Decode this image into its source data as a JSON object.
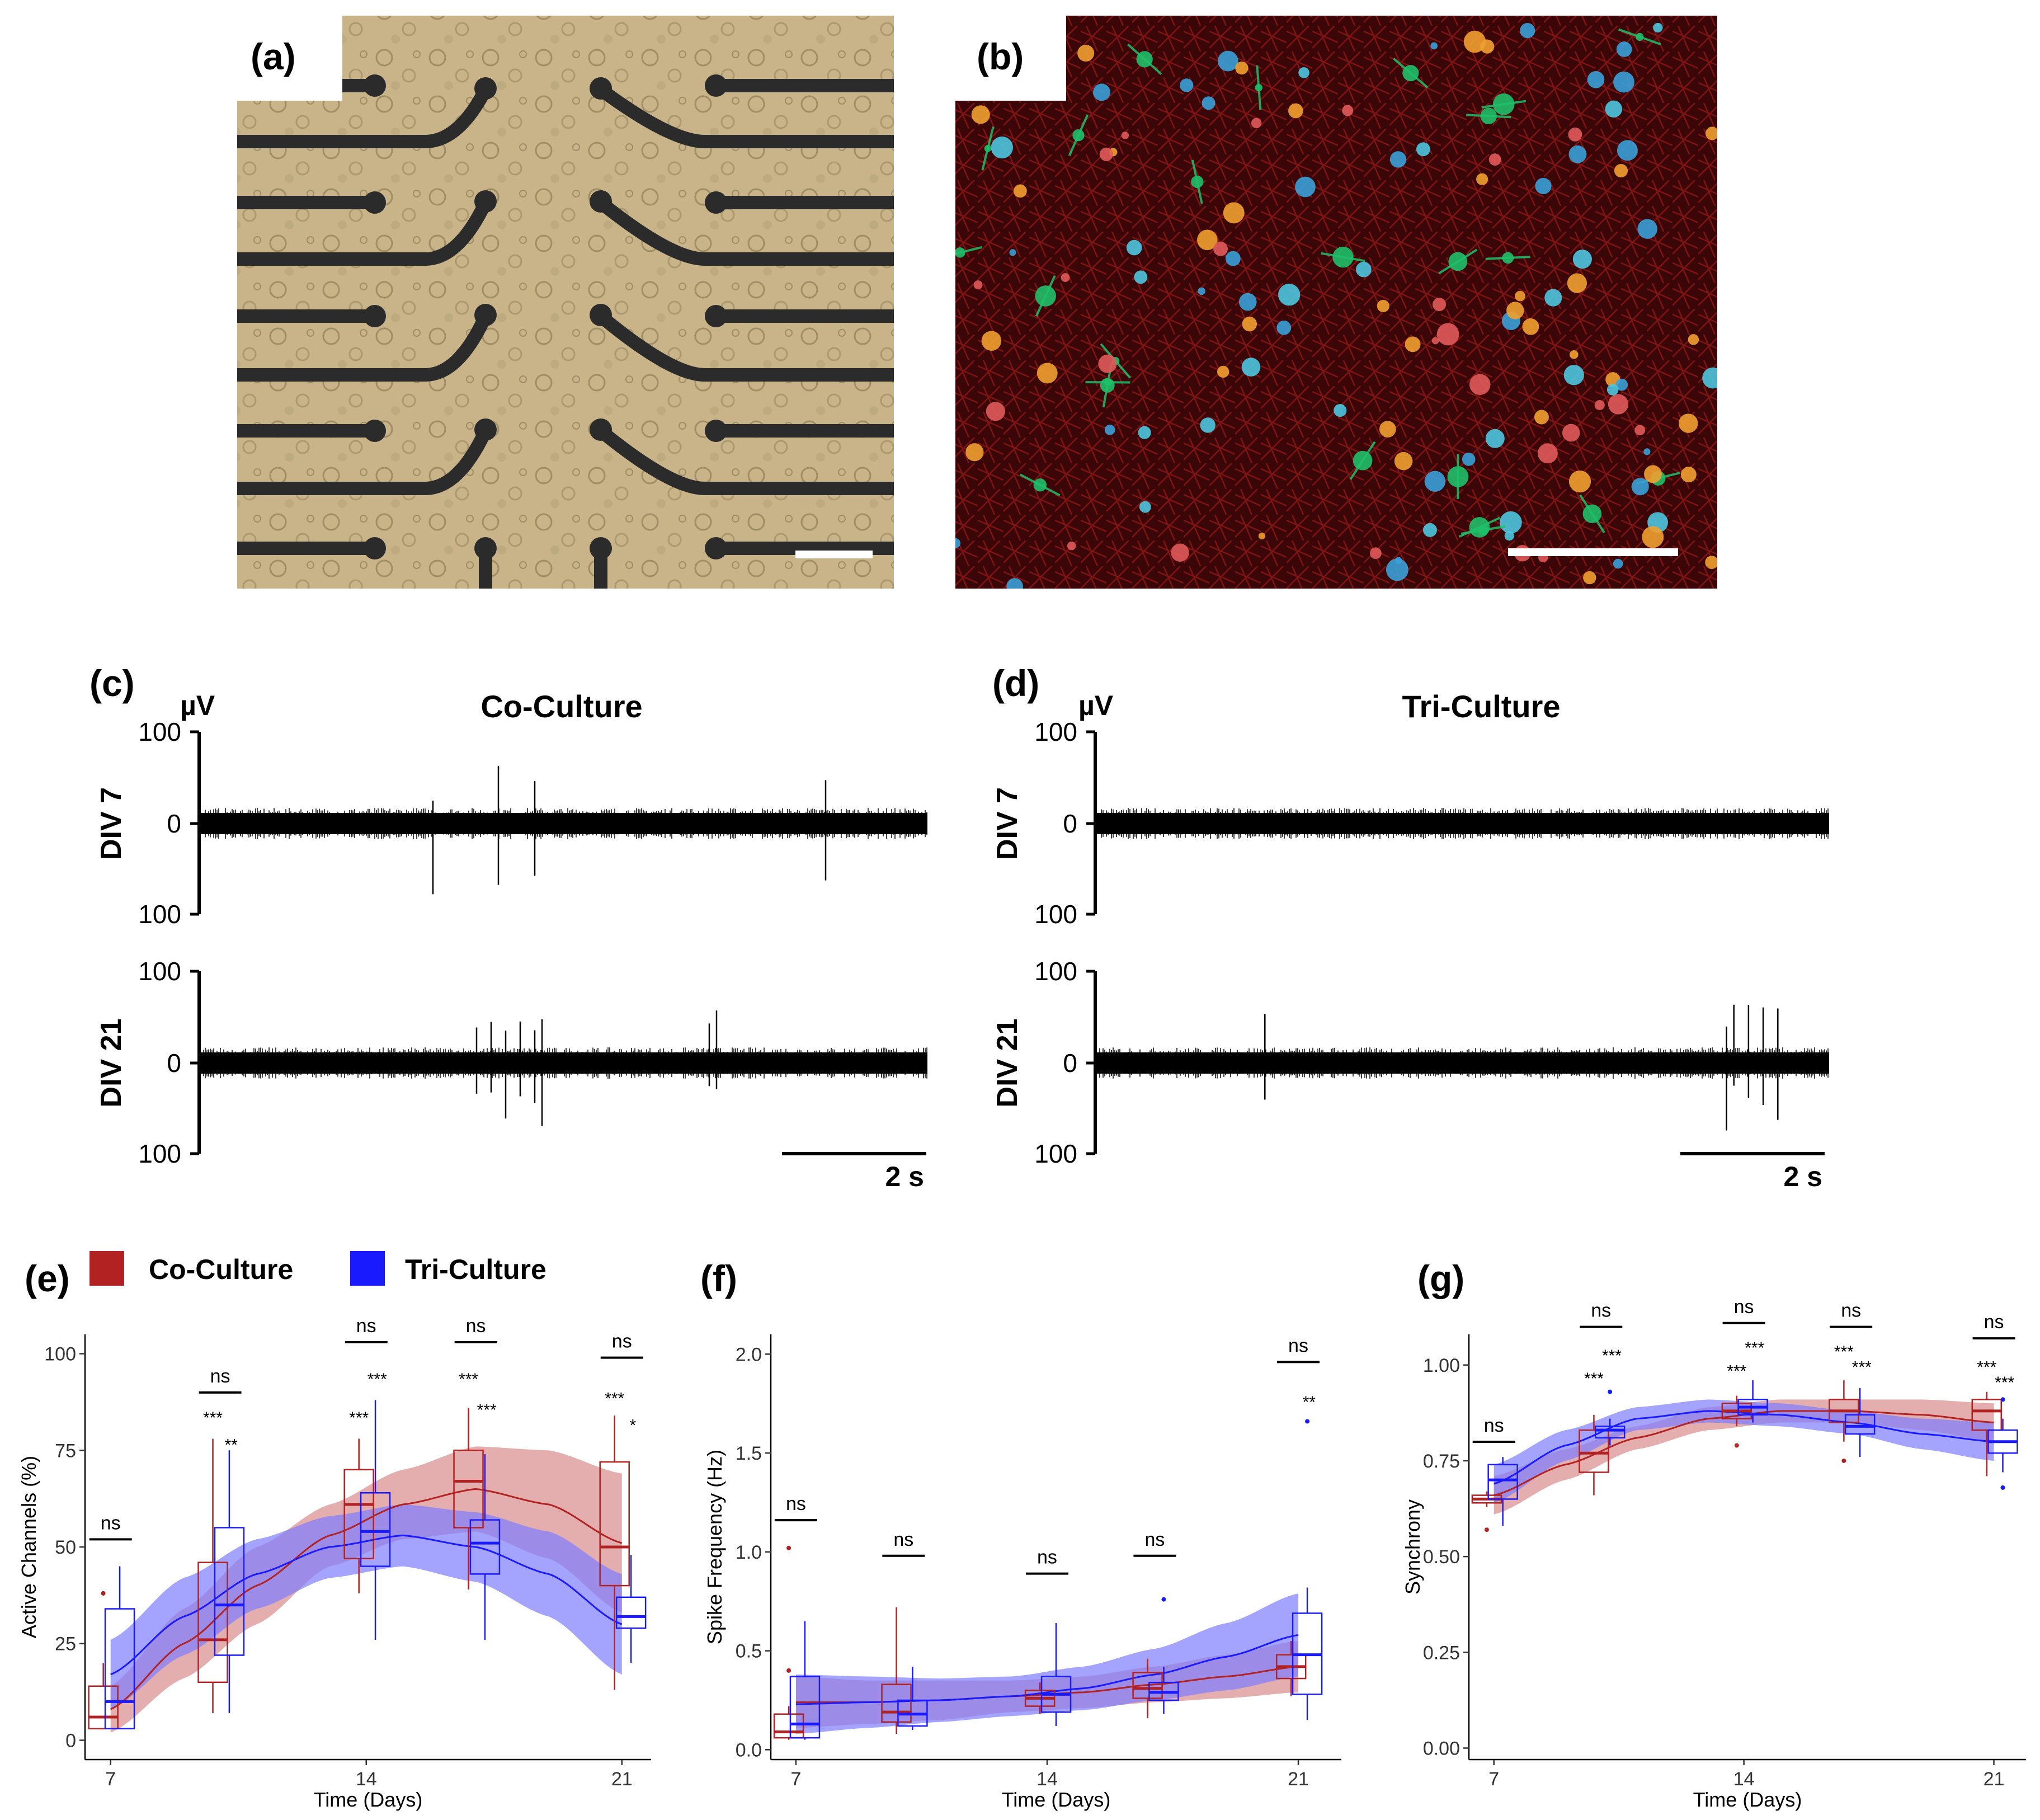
{
  "figure": {
    "panels": [
      {
        "id": "a",
        "label": "(a)"
      },
      {
        "id": "b",
        "label": "(b)"
      },
      {
        "id": "c",
        "label": "(c)"
      },
      {
        "id": "d",
        "label": "(d)"
      },
      {
        "id": "e",
        "label": "(e)"
      },
      {
        "id": "f",
        "label": "(f)"
      },
      {
        "id": "g",
        "label": "(g)"
      }
    ]
  },
  "colors": {
    "co": "#b22222",
    "tri": "#1a1aff",
    "co_band": "#d98c8c",
    "tri_band": "#7d7dff",
    "micro_bg": "#c8b488",
    "electrode": "#2b2b2b",
    "fluor_bg": "#3a0608"
  },
  "traces": {
    "unit": "µV",
    "tick_labels": [
      "100",
      "0",
      "100"
    ],
    "scalebar_label": "2 s",
    "row_labels": [
      "DIV 7",
      "DIV 21"
    ],
    "panels": [
      {
        "title": "Co-Culture",
        "spikes_div7": [
          0.32,
          0.41,
          0.46,
          0.86
        ],
        "spikes_div21": [
          0.38,
          0.4,
          0.42,
          0.44,
          0.46,
          0.47,
          0.7,
          0.71
        ]
      },
      {
        "title": "Tri-Culture",
        "spikes_div7": [],
        "spikes_div21": [
          0.23,
          0.86,
          0.87,
          0.89,
          0.91,
          0.93
        ]
      }
    ]
  },
  "legend": {
    "items": [
      {
        "label": "Co-Culture",
        "color": "#b22222"
      },
      {
        "label": "Tri-Culture",
        "color": "#1a1aff"
      }
    ]
  },
  "chart_data": [
    {
      "panel": "e",
      "type": "box",
      "xlabel": "Time (Days)",
      "ylabel": "Active Channels (%)",
      "xlim": [
        6.3,
        21.8
      ],
      "ylim": [
        -5,
        105
      ],
      "xticks": [
        7,
        14,
        21
      ],
      "yticks": [
        0,
        25,
        50,
        75,
        100
      ],
      "boxes": [
        {
          "series": "Co-Culture",
          "x": 6.8,
          "q1": 3,
          "median": 6,
          "q3": 14,
          "lo": 3,
          "hi": 20,
          "outliers": [
            38
          ]
        },
        {
          "series": "Tri-Culture",
          "x": 7.25,
          "q1": 3,
          "median": 10,
          "q3": 34,
          "lo": 3,
          "hi": 45,
          "outliers": []
        },
        {
          "series": "Co-Culture",
          "x": 9.8,
          "q1": 15,
          "median": 26,
          "q3": 46,
          "lo": 7,
          "hi": 78,
          "outliers": []
        },
        {
          "series": "Tri-Culture",
          "x": 10.25,
          "q1": 22,
          "median": 35,
          "q3": 55,
          "lo": 7,
          "hi": 75,
          "outliers": []
        },
        {
          "series": "Co-Culture",
          "x": 13.8,
          "q1": 47,
          "median": 61,
          "q3": 70,
          "lo": 38,
          "hi": 78,
          "outliers": []
        },
        {
          "series": "Tri-Culture",
          "x": 14.25,
          "q1": 45,
          "median": 54,
          "q3": 64,
          "lo": 26,
          "hi": 88,
          "outliers": []
        },
        {
          "series": "Co-Culture",
          "x": 16.8,
          "q1": 55,
          "median": 67,
          "q3": 75,
          "lo": 39,
          "hi": 86,
          "outliers": []
        },
        {
          "series": "Tri-Culture",
          "x": 17.25,
          "q1": 43,
          "median": 51,
          "q3": 57,
          "lo": 26,
          "hi": 74,
          "outliers": []
        },
        {
          "series": "Co-Culture",
          "x": 20.8,
          "q1": 40,
          "median": 50,
          "q3": 72,
          "lo": 13,
          "hi": 84,
          "outliers": []
        },
        {
          "series": "Tri-Culture",
          "x": 21.25,
          "q1": 29,
          "median": 32,
          "q3": 37,
          "lo": 20,
          "hi": 48,
          "outliers": []
        }
      ],
      "trend": [
        {
          "series": "Co-Culture",
          "x": [
            7,
            9,
            11,
            13,
            15,
            17,
            19,
            21
          ],
          "y": [
            8,
            25,
            40,
            53,
            61,
            65,
            61,
            51
          ],
          "band": [
            6,
            9,
            10,
            8,
            9,
            11,
            14,
            18
          ]
        },
        {
          "series": "Tri-Culture",
          "x": [
            7,
            9,
            11,
            13,
            15,
            17,
            19,
            21
          ],
          "y": [
            17,
            32,
            43,
            50,
            53,
            50,
            43,
            30
          ],
          "band": [
            9,
            10,
            9,
            8,
            8,
            9,
            11,
            13
          ]
        }
      ],
      "annotations": [
        {
          "text": "ns",
          "x": 7.0,
          "y": 54,
          "bar": true
        },
        {
          "text": "ns",
          "x": 10.0,
          "y": 92,
          "bar": true
        },
        {
          "text": "ns",
          "x": 14.0,
          "y": 105,
          "bar": true
        },
        {
          "text": "ns",
          "x": 17.0,
          "y": 105,
          "bar": true
        },
        {
          "text": "ns",
          "x": 21.0,
          "y": 101,
          "bar": true
        },
        {
          "text": "***",
          "x": 9.8,
          "y": 82,
          "bar": false
        },
        {
          "text": "**",
          "x": 10.3,
          "y": 75,
          "bar": false
        },
        {
          "text": "***",
          "x": 13.8,
          "y": 82,
          "bar": false
        },
        {
          "text": "***",
          "x": 14.3,
          "y": 92,
          "bar": false
        },
        {
          "text": "***",
          "x": 16.8,
          "y": 92,
          "bar": false
        },
        {
          "text": "***",
          "x": 17.3,
          "y": 84,
          "bar": false
        },
        {
          "text": "***",
          "x": 20.8,
          "y": 87,
          "bar": false
        },
        {
          "text": "*",
          "x": 21.3,
          "y": 80,
          "bar": false
        }
      ]
    },
    {
      "panel": "f",
      "type": "box",
      "xlabel": "Time (Days)",
      "ylabel": "Spike Frequency (Hz)",
      "xlim": [
        6.3,
        22.2
      ],
      "ylim": [
        -0.05,
        2.1
      ],
      "xticks": [
        7,
        14,
        21
      ],
      "yticks": [
        0.0,
        0.5,
        1.0,
        1.5,
        2.0
      ],
      "boxes": [
        {
          "series": "Co-Culture",
          "x": 6.8,
          "q1": 0.06,
          "median": 0.09,
          "q3": 0.18,
          "lo": 0.05,
          "hi": 0.22,
          "outliers": [
            1.02,
            0.4
          ]
        },
        {
          "series": "Tri-Culture",
          "x": 7.25,
          "q1": 0.06,
          "median": 0.13,
          "q3": 0.37,
          "lo": 0.05,
          "hi": 0.65,
          "outliers": []
        },
        {
          "series": "Co-Culture",
          "x": 9.8,
          "q1": 0.14,
          "median": 0.19,
          "q3": 0.33,
          "lo": 0.08,
          "hi": 0.72,
          "outliers": []
        },
        {
          "series": "Tri-Culture",
          "x": 10.25,
          "q1": 0.12,
          "median": 0.18,
          "q3": 0.25,
          "lo": 0.1,
          "hi": 0.42,
          "outliers": []
        },
        {
          "series": "Co-Culture",
          "x": 13.8,
          "q1": 0.22,
          "median": 0.26,
          "q3": 0.3,
          "lo": 0.18,
          "hi": 0.34,
          "outliers": []
        },
        {
          "series": "Tri-Culture",
          "x": 14.25,
          "q1": 0.19,
          "median": 0.28,
          "q3": 0.37,
          "lo": 0.12,
          "hi": 0.64,
          "outliers": []
        },
        {
          "series": "Co-Culture",
          "x": 16.8,
          "q1": 0.26,
          "median": 0.31,
          "q3": 0.39,
          "lo": 0.16,
          "hi": 0.46,
          "outliers": []
        },
        {
          "series": "Tri-Culture",
          "x": 17.25,
          "q1": 0.25,
          "median": 0.29,
          "q3": 0.34,
          "lo": 0.18,
          "hi": 0.42,
          "outliers": [
            0.76
          ]
        },
        {
          "series": "Co-Culture",
          "x": 20.8,
          "q1": 0.36,
          "median": 0.42,
          "q3": 0.48,
          "lo": 0.27,
          "hi": 0.55,
          "outliers": []
        },
        {
          "series": "Tri-Culture",
          "x": 21.25,
          "q1": 0.28,
          "median": 0.48,
          "q3": 0.69,
          "lo": 0.15,
          "hi": 0.82,
          "outliers": [
            1.66
          ]
        }
      ],
      "trend": [
        {
          "series": "Co-Culture",
          "x": [
            7,
            9,
            11,
            13,
            15,
            17,
            19,
            21
          ],
          "y": [
            0.24,
            0.24,
            0.25,
            0.27,
            0.29,
            0.33,
            0.37,
            0.42
          ],
          "band": [
            0.13,
            0.11,
            0.1,
            0.08,
            0.08,
            0.09,
            0.11,
            0.13
          ]
        },
        {
          "series": "Tri-Culture",
          "x": [
            7,
            9,
            11,
            13,
            15,
            17,
            19,
            21
          ],
          "y": [
            0.23,
            0.24,
            0.25,
            0.27,
            0.31,
            0.38,
            0.47,
            0.58
          ],
          "band": [
            0.15,
            0.13,
            0.11,
            0.1,
            0.11,
            0.13,
            0.17,
            0.21
          ]
        }
      ],
      "annotations": [
        {
          "text": "ns",
          "x": 7.0,
          "y": 1.2,
          "bar": true
        },
        {
          "text": "ns",
          "x": 10.0,
          "y": 1.02,
          "bar": true
        },
        {
          "text": "ns",
          "x": 14.0,
          "y": 0.93,
          "bar": true
        },
        {
          "text": "ns",
          "x": 17.0,
          "y": 1.02,
          "bar": true
        },
        {
          "text": "ns",
          "x": 21.0,
          "y": 2.0,
          "bar": true
        },
        {
          "text": "**",
          "x": 21.3,
          "y": 1.73,
          "bar": false
        }
      ]
    },
    {
      "panel": "g",
      "type": "box",
      "xlabel": "Time (Days)",
      "ylabel": "Synchrony",
      "xlim": [
        6.3,
        21.9
      ],
      "ylim": [
        -0.03,
        1.08
      ],
      "xticks": [
        7,
        14,
        21
      ],
      "yticks": [
        0.0,
        0.25,
        0.5,
        0.75,
        1.0
      ],
      "boxes": [
        {
          "series": "Co-Culture",
          "x": 6.8,
          "q1": 0.64,
          "median": 0.65,
          "q3": 0.66,
          "lo": 0.63,
          "hi": 0.67,
          "outliers": [
            0.57
          ]
        },
        {
          "series": "Tri-Culture",
          "x": 7.25,
          "q1": 0.65,
          "median": 0.7,
          "q3": 0.74,
          "lo": 0.58,
          "hi": 0.76,
          "outliers": []
        },
        {
          "series": "Co-Culture",
          "x": 9.8,
          "q1": 0.72,
          "median": 0.77,
          "q3": 0.83,
          "lo": 0.66,
          "hi": 0.87,
          "outliers": []
        },
        {
          "series": "Tri-Culture",
          "x": 10.25,
          "q1": 0.81,
          "median": 0.83,
          "q3": 0.84,
          "lo": 0.79,
          "hi": 0.86,
          "outliers": [
            0.93
          ]
        },
        {
          "series": "Co-Culture",
          "x": 13.8,
          "q1": 0.86,
          "median": 0.88,
          "q3": 0.9,
          "lo": 0.84,
          "hi": 0.92,
          "outliers": [
            0.79
          ]
        },
        {
          "series": "Tri-Culture",
          "x": 14.25,
          "q1": 0.87,
          "median": 0.89,
          "q3": 0.91,
          "lo": 0.85,
          "hi": 0.96,
          "outliers": []
        },
        {
          "series": "Co-Culture",
          "x": 16.8,
          "q1": 0.85,
          "median": 0.88,
          "q3": 0.91,
          "lo": 0.8,
          "hi": 0.96,
          "outliers": [
            0.75
          ]
        },
        {
          "series": "Tri-Culture",
          "x": 17.25,
          "q1": 0.82,
          "median": 0.84,
          "q3": 0.87,
          "lo": 0.76,
          "hi": 0.94,
          "outliers": []
        },
        {
          "series": "Co-Culture",
          "x": 20.8,
          "q1": 0.83,
          "median": 0.88,
          "q3": 0.91,
          "lo": 0.71,
          "hi": 0.93,
          "outliers": []
        },
        {
          "series": "Tri-Culture",
          "x": 21.25,
          "q1": 0.77,
          "median": 0.8,
          "q3": 0.83,
          "lo": 0.72,
          "hi": 0.86,
          "outliers": [
            0.68,
            0.91
          ]
        }
      ],
      "trend": [
        {
          "series": "Co-Culture",
          "x": [
            7,
            9,
            11,
            13,
            15,
            17,
            19,
            21
          ],
          "y": [
            0.66,
            0.74,
            0.81,
            0.86,
            0.88,
            0.88,
            0.87,
            0.85
          ],
          "band": [
            0.05,
            0.04,
            0.03,
            0.03,
            0.03,
            0.03,
            0.04,
            0.05
          ]
        },
        {
          "series": "Tri-Culture",
          "x": [
            7,
            9,
            11,
            13,
            15,
            17,
            19,
            21
          ],
          "y": [
            0.69,
            0.79,
            0.86,
            0.88,
            0.87,
            0.85,
            0.82,
            0.8
          ],
          "band": [
            0.05,
            0.04,
            0.03,
            0.03,
            0.03,
            0.03,
            0.04,
            0.05
          ]
        }
      ],
      "annotations": [
        {
          "text": "ns",
          "x": 7.0,
          "y": 0.82,
          "bar": true
        },
        {
          "text": "ns",
          "x": 10.0,
          "y": 1.12,
          "bar": true
        },
        {
          "text": "ns",
          "x": 14.0,
          "y": 1.13,
          "bar": true
        },
        {
          "text": "ns",
          "x": 17.0,
          "y": 1.12,
          "bar": true
        },
        {
          "text": "ns",
          "x": 21.0,
          "y": 1.09,
          "bar": true
        },
        {
          "text": "***",
          "x": 9.8,
          "y": 0.95,
          "bar": false
        },
        {
          "text": "***",
          "x": 10.3,
          "y": 1.01,
          "bar": false
        },
        {
          "text": "***",
          "x": 13.8,
          "y": 0.97,
          "bar": false
        },
        {
          "text": "***",
          "x": 14.3,
          "y": 1.03,
          "bar": false
        },
        {
          "text": "***",
          "x": 16.8,
          "y": 1.02,
          "bar": false
        },
        {
          "text": "***",
          "x": 17.3,
          "y": 0.98,
          "bar": false
        },
        {
          "text": "***",
          "x": 20.8,
          "y": 0.98,
          "bar": false
        },
        {
          "text": "***",
          "x": 21.3,
          "y": 0.94,
          "bar": false
        }
      ]
    }
  ]
}
